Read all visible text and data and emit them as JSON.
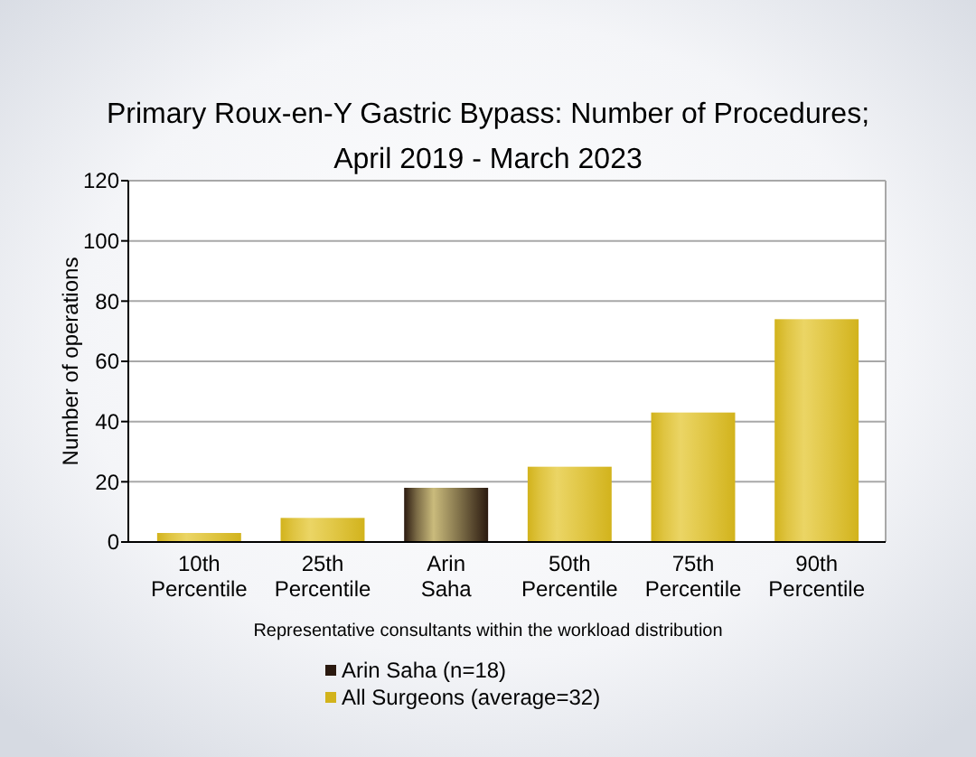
{
  "chart_data": {
    "type": "bar",
    "title": "Primary Roux-en-Y Gastric Bypass: Number of Procedures;\nApril 2019 - March 2023",
    "xlabel": "Representative consultants within the workload distribution",
    "ylabel": "Number of operations",
    "categories": [
      "10th Percentile",
      "25th Percentile",
      "Arin Saha",
      "50th Percentile",
      "75th Percentile",
      "90th Percentile"
    ],
    "series": [
      {
        "name": "Arin Saha (n=18)",
        "color": "#2b1a10",
        "values": [
          null,
          null,
          18,
          null,
          null,
          null
        ]
      },
      {
        "name": "All Surgeons (average=32)",
        "color": "#d2b31c",
        "values": [
          3,
          8,
          null,
          25,
          43,
          74
        ]
      }
    ],
    "stacked": true,
    "ylim": [
      0,
      120
    ],
    "yticks": [
      0,
      20,
      40,
      60,
      80,
      100,
      120
    ],
    "grid": "y",
    "legend": "bottom"
  }
}
